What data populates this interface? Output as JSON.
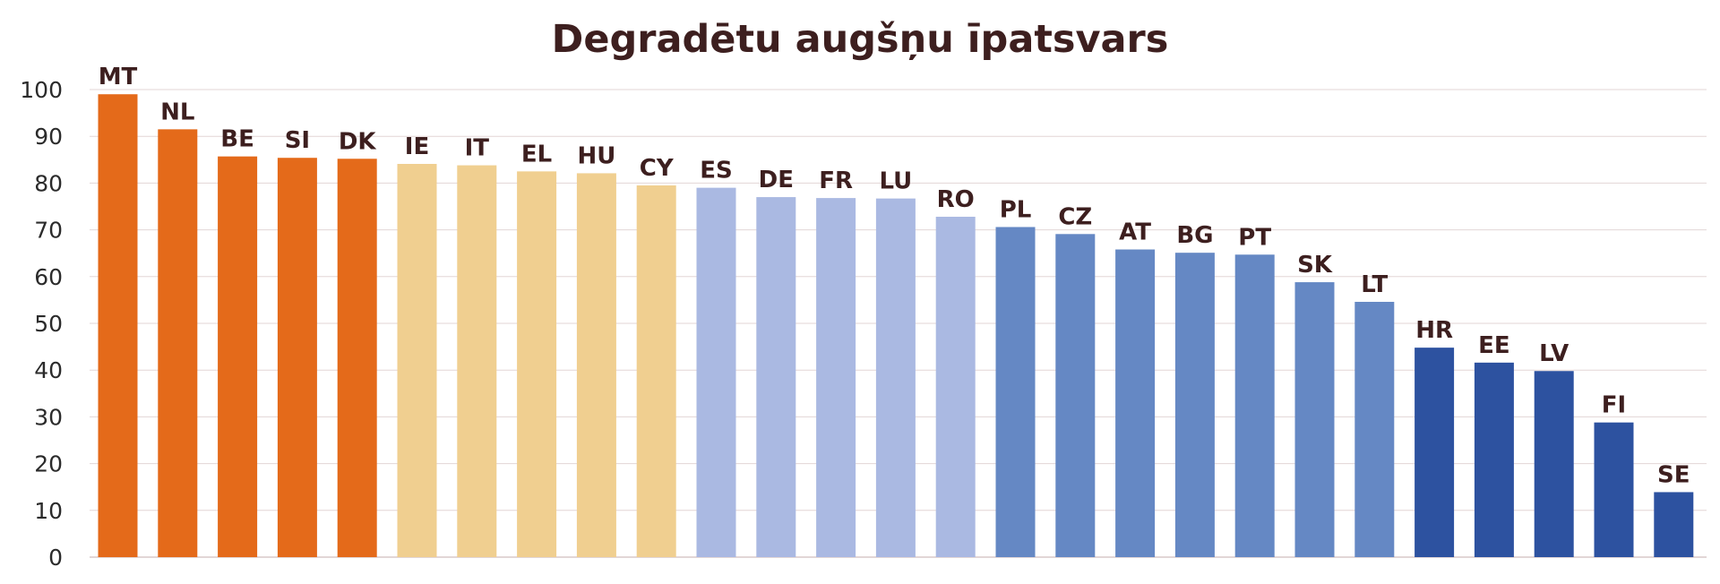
{
  "chart_data": {
    "type": "bar",
    "title": "Degradētu augšņu īpatsvars",
    "xlabel": "",
    "ylabel": "",
    "ylim": [
      0,
      100
    ],
    "yticks": [
      0,
      10,
      20,
      30,
      40,
      50,
      60,
      70,
      80,
      90,
      100
    ],
    "grid": true,
    "legend": "none",
    "data_labels": "country codes above bars",
    "categories": [
      "MT",
      "NL",
      "BE",
      "SI",
      "DK",
      "IE",
      "IT",
      "EL",
      "HU",
      "CY",
      "ES",
      "DE",
      "FR",
      "LU",
      "RO",
      "PL",
      "CZ",
      "AT",
      "BG",
      "PT",
      "SK",
      "LT",
      "HR",
      "EE",
      "LV",
      "FI",
      "SE"
    ],
    "values": [
      99,
      91.5,
      85.7,
      85.4,
      85.2,
      84.1,
      83.8,
      82.5,
      82.1,
      79.5,
      79.0,
      77.0,
      76.8,
      76.7,
      72.8,
      70.6,
      69.1,
      65.8,
      65.1,
      64.7,
      58.8,
      54.6,
      44.8,
      41.6,
      39.8,
      28.8,
      13.9
    ],
    "colors": [
      "#e46a1a",
      "#e46a1a",
      "#e46a1a",
      "#e46a1a",
      "#e46a1a",
      "#f0cf90",
      "#f0cf90",
      "#f0cf90",
      "#f0cf90",
      "#f0cf90",
      "#aab9e2",
      "#aab9e2",
      "#aab9e2",
      "#aab9e2",
      "#aab9e2",
      "#6588c4",
      "#6588c4",
      "#6588c4",
      "#6588c4",
      "#6588c4",
      "#6588c4",
      "#6588c4",
      "#2d52a0",
      "#2d52a0",
      "#2d52a0",
      "#2d52a0",
      "#2d52a0"
    ]
  }
}
